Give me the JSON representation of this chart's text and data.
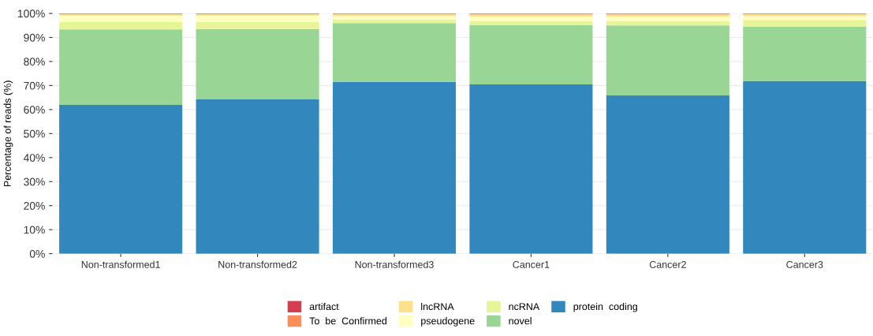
{
  "chart_data": {
    "type": "bar",
    "stacked": true,
    "ylabel": "Percentage of reads (%)",
    "categories": [
      "Non-transformed1",
      "Non-transformed2",
      "Non-transformed3",
      "Cancer1",
      "Cancer2",
      "Cancer3"
    ],
    "series": [
      {
        "name": "protein  coding",
        "color": "#3288bd",
        "values": [
          61.9,
          64.2,
          71.5,
          70.5,
          65.9,
          71.9
        ]
      },
      {
        "name": "novel",
        "color": "#99d594",
        "values": [
          31.5,
          29.3,
          24.5,
          24.6,
          29.1,
          22.5
        ]
      },
      {
        "name": "ncRNA",
        "color": "#e6f598",
        "values": [
          3.2,
          3.0,
          1.5,
          1.6,
          1.7,
          2.9
        ]
      },
      {
        "name": "pseudogene",
        "color": "#ffffbf",
        "values": [
          2.4,
          2.5,
          1.4,
          2.0,
          2.0,
          1.6
        ]
      },
      {
        "name": "lncRNA",
        "color": "#fee08b",
        "values": [
          0.7,
          0.7,
          0.8,
          0.9,
          0.9,
          0.8
        ]
      },
      {
        "name": "To  be  Confirmed",
        "color": "#fc8d59",
        "values": [
          0.2,
          0.2,
          0.2,
          0.3,
          0.3,
          0.2
        ]
      },
      {
        "name": "artifact",
        "color": "#d53e4f",
        "values": [
          0.1,
          0.1,
          0.1,
          0.1,
          0.1,
          0.1
        ]
      }
    ],
    "ylim": [
      0,
      100
    ],
    "yticks": [
      {
        "value": 0,
        "label": "0%"
      },
      {
        "value": 10,
        "label": "10%"
      },
      {
        "value": 20,
        "label": "20%"
      },
      {
        "value": 30,
        "label": "30%"
      },
      {
        "value": 40,
        "label": "40%"
      },
      {
        "value": 50,
        "label": "50%"
      },
      {
        "value": 60,
        "label": "60%"
      },
      {
        "value": 70,
        "label": "70%"
      },
      {
        "value": 80,
        "label": "80%"
      },
      {
        "value": 90,
        "label": "90%"
      },
      {
        "value": 100,
        "label": "100%"
      }
    ],
    "grid": "y",
    "legend": "bottom"
  }
}
